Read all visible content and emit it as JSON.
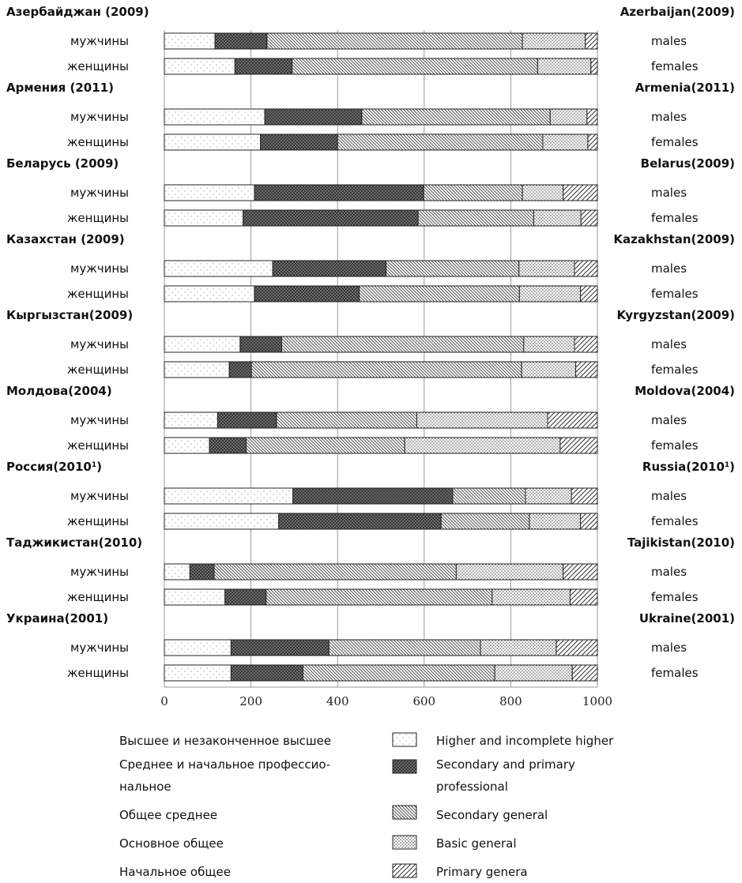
{
  "chart_data": {
    "type": "bar",
    "stacked": true,
    "orientation": "horizontal",
    "xlim": [
      0,
      1000
    ],
    "x_ticks": [
      "0",
      "200",
      "400",
      "600",
      "800",
      "1000"
    ],
    "grid": true,
    "segments_ru": [
      "Высшее и незаконченное высшее",
      "Среднее и начальное профессио-",
      "нальное",
      "Общее среднее",
      "Основное общее",
      "Начальное общее"
    ],
    "segments_en": [
      "Higher and incomplete higher",
      "Secondary and primary",
      "professional",
      "Secondary general",
      "Basic general",
      "Primary genera"
    ],
    "groups": [
      {
        "ru": "Азербайджан (2009)",
        "en": "Azerbaijan(2009)",
        "sup_ru": "",
        "sup_en": "",
        "tail_ru": "",
        "tail_en": "",
        "rows": [
          {
            "ru": "мужчины",
            "en": "males",
            "values": [
              117,
              120,
              590,
              145,
              28
            ]
          },
          {
            "ru": "женщины",
            "en": "females",
            "values": [
              163,
              132,
              567,
              123,
              15
            ]
          }
        ]
      },
      {
        "ru": "Армения (2011)",
        "en": "Armenia(2011)",
        "sup_ru": "",
        "sup_en": "",
        "tail_ru": "",
        "tail_en": "",
        "rows": [
          {
            "ru": "мужчины",
            "en": "males",
            "values": [
              232,
              224,
              435,
              85,
              24
            ]
          },
          {
            "ru": "женщины",
            "en": "females",
            "values": [
              222,
              178,
              474,
              104,
              22
            ]
          }
        ]
      },
      {
        "ru": "Беларусь (2009)",
        "en": "Belarus(2009)",
        "sup_ru": "",
        "sup_en": "",
        "tail_ru": "",
        "tail_en": "",
        "rows": [
          {
            "ru": "мужчины",
            "en": "males",
            "values": [
              208,
              391,
              228,
              94,
              79
            ]
          },
          {
            "ru": "женщины",
            "en": "females",
            "values": [
              182,
              404,
              267,
              109,
              38
            ]
          }
        ]
      },
      {
        "ru": "Казахстан (2009)",
        "en": "Kazakhstan(2009)",
        "sup_ru": "",
        "sup_en": "",
        "tail_ru": "",
        "tail_en": "",
        "rows": [
          {
            "ru": "мужчины",
            "en": "males",
            "values": [
              250,
              262,
              307,
              128,
              53
            ]
          },
          {
            "ru": "женщины",
            "en": "females",
            "values": [
              208,
              242,
              370,
              141,
              39
            ]
          }
        ]
      },
      {
        "ru": "Кыргызстан(2009)",
        "en": "Kyrgyzstan(2009)",
        "sup_ru": "",
        "sup_en": "",
        "tail_ru": "",
        "tail_en": "",
        "rows": [
          {
            "ru": "мужчины",
            "en": "males",
            "values": [
              175,
              96,
              559,
              117,
              53
            ]
          },
          {
            "ru": "женщины",
            "en": "females",
            "values": [
              150,
              51,
              624,
              125,
              50
            ]
          }
        ]
      },
      {
        "ru": "Молдова(2004)",
        "en": "Moldova(2004)",
        "sup_ru": "",
        "sup_en": "",
        "tail_ru": "",
        "tail_en": "",
        "rows": [
          {
            "ru": "мужчины",
            "en": "males",
            "values": [
              123,
              136,
              324,
              302,
              115
            ]
          },
          {
            "ru": "женщины",
            "en": "females",
            "values": [
              104,
              85,
              366,
              359,
              86
            ]
          }
        ]
      },
      {
        "ru": "Россия(2010",
        "en": "Russia(2010",
        "sup_ru": "1",
        "sup_en": "1",
        "tail_ru": ")",
        "tail_en": ")",
        "rows": [
          {
            "ru": "мужчины",
            "en": "males",
            "values": [
              297,
              369,
              168,
              106,
              60
            ]
          },
          {
            "ru": "женщины",
            "en": "females",
            "values": [
              264,
              375,
              204,
              118,
              39
            ]
          }
        ]
      },
      {
        "ru": "Таджикистан(2010)",
        "en": "Tajikistan(2010)",
        "sup_ru": "",
        "sup_en": "",
        "tail_ru": "",
        "tail_en": "",
        "rows": [
          {
            "ru": "мужчины",
            "en": "males",
            "values": [
              59,
              56,
              559,
              247,
              79
            ]
          },
          {
            "ru": "женщины",
            "en": "females",
            "values": [
              140,
              95,
              522,
              180,
              63
            ]
          }
        ]
      },
      {
        "ru": "Украина(2001)",
        "en": "Ukraine(2001)",
        "sup_ru": "",
        "sup_en": "",
        "tail_ru": "",
        "tail_en": "",
        "rows": [
          {
            "ru": "мужчины",
            "en": "males",
            "values": [
              154,
              226,
              350,
              175,
              95
            ]
          },
          {
            "ru": "женщины",
            "en": "females",
            "values": [
              154,
              166,
              443,
              179,
              58
            ]
          }
        ]
      }
    ]
  }
}
